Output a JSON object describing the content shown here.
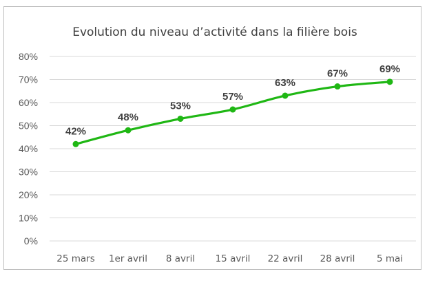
{
  "chart_data": {
    "type": "line",
    "title": "Evolution du niveau d’activité dans la filière bois",
    "categories": [
      "25 mars",
      "1er avril",
      "8 avril",
      "15 avril",
      "22 avril",
      "28 avril",
      "5 mai"
    ],
    "values": [
      42,
      48,
      53,
      57,
      63,
      67,
      69
    ],
    "data_labels": [
      "42%",
      "48%",
      "53%",
      "57%",
      "63%",
      "67%",
      "69%"
    ],
    "y_ticks": [
      {
        "value": 0,
        "label": "0%"
      },
      {
        "value": 10,
        "label": "10%"
      },
      {
        "value": 20,
        "label": "20%"
      },
      {
        "value": 30,
        "label": "30%"
      },
      {
        "value": 40,
        "label": "40%"
      },
      {
        "value": 50,
        "label": "50%"
      },
      {
        "value": 60,
        "label": "60%"
      },
      {
        "value": 70,
        "label": "70%"
      },
      {
        "value": 80,
        "label": "80%"
      }
    ],
    "ylim": [
      0,
      80
    ],
    "grid": true,
    "line_color": "#1fb714",
    "xlabel": "",
    "ylabel": ""
  }
}
